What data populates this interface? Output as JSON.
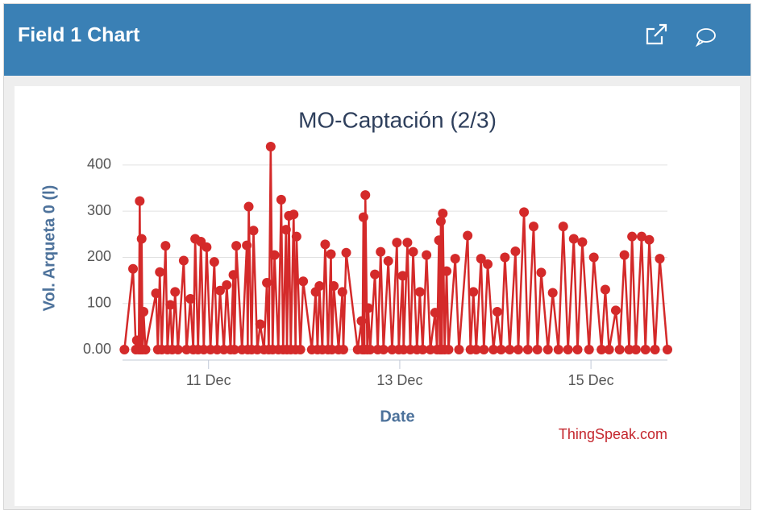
{
  "header": {
    "title": "Field 1 Chart"
  },
  "chart_data": {
    "type": "line",
    "title": "MO-Captación (2/3)",
    "x_label": "Date",
    "y_label": "Vol. Arqueta 0 (l)",
    "credits": "ThingSpeak.com",
    "color": "#d42a2a",
    "grid": true,
    "markers": true,
    "xlim": [
      10.1,
      15.8
    ],
    "xticks": [
      {
        "value": 11,
        "label": "11 Dec"
      },
      {
        "value": 13,
        "label": "13 Dec"
      },
      {
        "value": 15,
        "label": "15 Dec"
      }
    ],
    "ylim": [
      0,
      440
    ],
    "yticks": [
      {
        "value": 0,
        "label": "0.00"
      },
      100,
      200,
      300,
      400
    ],
    "x": [
      10.12,
      10.21,
      10.24,
      10.25,
      10.27,
      10.28,
      10.29,
      10.3,
      10.31,
      10.32,
      10.34,
      10.45,
      10.47,
      10.49,
      10.51,
      10.55,
      10.57,
      10.6,
      10.62,
      10.65,
      10.68,
      10.74,
      10.77,
      10.81,
      10.84,
      10.86,
      10.89,
      10.92,
      10.95,
      10.98,
      11.02,
      11.06,
      11.09,
      11.12,
      11.16,
      11.19,
      11.23,
      11.26,
      11.27,
      11.29,
      11.35,
      11.4,
      11.41,
      11.42,
      11.45,
      11.47,
      11.51,
      11.54,
      11.58,
      11.61,
      11.63,
      11.65,
      11.67,
      11.69,
      11.73,
      11.76,
      11.78,
      11.81,
      11.82,
      11.84,
      11.86,
      11.89,
      11.91,
      11.92,
      11.96,
      11.99,
      12.08,
      12.12,
      12.14,
      12.16,
      12.19,
      12.22,
      12.25,
      12.28,
      12.29,
      12.31,
      12.36,
      12.4,
      12.41,
      12.44,
      12.56,
      12.6,
      12.61,
      12.62,
      12.63,
      12.64,
      12.66,
      12.67,
      12.69,
      12.74,
      12.77,
      12.8,
      12.83,
      12.88,
      12.92,
      12.97,
      12.99,
      13.03,
      13.04,
      13.08,
      13.11,
      13.14,
      13.18,
      13.21,
      13.24,
      13.28,
      13.32,
      13.37,
      13.39,
      13.41,
      13.42,
      13.43,
      13.44,
      13.45,
      13.47,
      13.49,
      13.51,
      13.58,
      13.62,
      13.71,
      13.74,
      13.77,
      13.8,
      13.85,
      13.88,
      13.92,
      13.98,
      14.02,
      14.06,
      14.1,
      14.15,
      14.21,
      14.24,
      14.3,
      14.34,
      14.4,
      14.44,
      14.48,
      14.55,
      14.6,
      14.66,
      14.71,
      14.76,
      14.82,
      14.86,
      14.91,
      14.98,
      15.03,
      15.11,
      15.15,
      15.19,
      15.26,
      15.3,
      15.35,
      15.4,
      15.43,
      15.47,
      15.53,
      15.57,
      15.61,
      15.67,
      15.72,
      15.8
    ],
    "values": [
      0,
      175,
      0,
      20,
      0,
      322,
      0,
      240,
      0,
      82,
      0,
      122,
      0,
      168,
      0,
      225,
      0,
      97,
      0,
      125,
      0,
      193,
      0,
      110,
      0,
      240,
      0,
      234,
      0,
      222,
      0,
      190,
      0,
      128,
      0,
      140,
      0,
      162,
      0,
      225,
      0,
      226,
      0,
      310,
      0,
      258,
      0,
      55,
      0,
      145,
      0,
      440,
      0,
      205,
      0,
      325,
      0,
      260,
      0,
      290,
      0,
      293,
      0,
      245,
      0,
      148,
      0,
      125,
      0,
      138,
      0,
      228,
      0,
      207,
      0,
      138,
      0,
      125,
      0,
      210,
      0,
      62,
      0,
      287,
      0,
      335,
      0,
      90,
      0,
      163,
      0,
      212,
      0,
      192,
      0,
      232,
      0,
      160,
      0,
      232,
      0,
      212,
      0,
      125,
      0,
      205,
      0,
      80,
      0,
      237,
      0,
      278,
      0,
      295,
      0,
      170,
      0,
      197,
      0,
      247,
      0,
      125,
      0,
      197,
      0,
      185,
      0,
      82,
      0,
      200,
      0,
      213,
      0,
      298,
      0,
      267,
      0,
      167,
      0,
      123,
      0,
      267,
      0,
      240,
      0,
      233,
      0,
      200,
      0,
      130,
      0,
      85,
      0,
      205,
      0,
      245,
      0,
      245,
      0,
      238,
      0,
      197,
      0
    ]
  }
}
